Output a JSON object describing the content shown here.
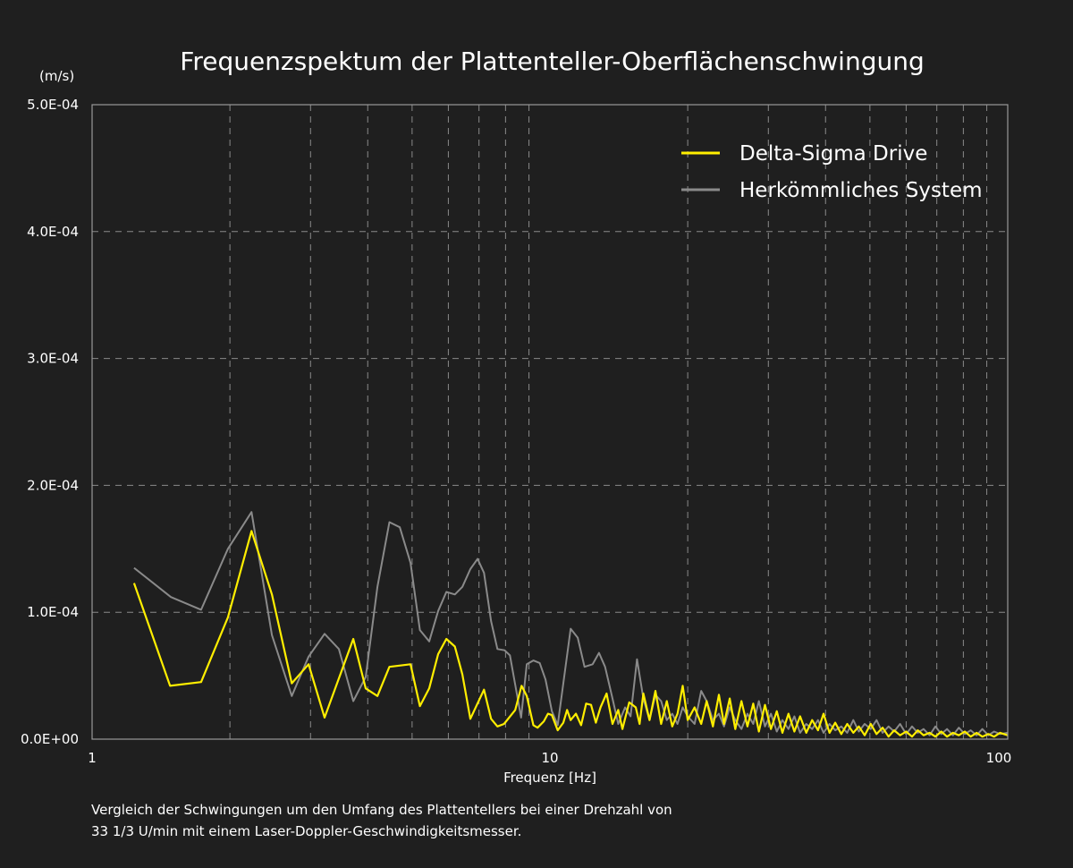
{
  "chart_data": {
    "type": "line",
    "title": "Frequenzspektum der Plattenteller-Oberflächenschwingung",
    "ylabel": "(m/s)",
    "xlabel": "Frequenz [Hz]",
    "xscale": "log",
    "xlim": [
      1,
      100
    ],
    "ylim": [
      0,
      0.0005
    ],
    "xticks": [
      1,
      10,
      100
    ],
    "xtick_labels": [
      "1",
      "10",
      "100"
    ],
    "yticks": [
      0,
      0.0001,
      0.0002,
      0.0003,
      0.0004,
      0.0005
    ],
    "ytick_labels": [
      "0.0E+00",
      "1.0E-04",
      "2.0E-04",
      "3.0E-04",
      "4.0E-04",
      "5.0E-04"
    ],
    "grid": true,
    "legend_position": "top-right",
    "series": [
      {
        "name": "Delta-Sigma Drive",
        "color": "#ffee00",
        "points": [
          [
            1.235,
            0.000123
          ],
          [
            1.48,
            4.2e-05
          ],
          [
            1.73,
            4.5e-05
          ],
          [
            1.98,
            9.6e-05
          ],
          [
            2.23,
            0.000164
          ],
          [
            2.47,
            0.000114
          ],
          [
            2.73,
            4.4e-05
          ],
          [
            2.97,
            5.9e-05
          ],
          [
            3.22,
            1.7e-05
          ],
          [
            3.72,
            7.9e-05
          ],
          [
            3.96,
            4e-05
          ],
          [
            4.2,
            3.4e-05
          ],
          [
            4.46,
            5.7e-05
          ],
          [
            4.96,
            5.9e-05
          ],
          [
            5.2,
            2.6e-05
          ],
          [
            5.45,
            4e-05
          ],
          [
            5.7,
            6.7e-05
          ],
          [
            5.94,
            7.9e-05
          ],
          [
            6.2,
            7.3e-05
          ],
          [
            6.44,
            5.1e-05
          ],
          [
            6.7,
            1.6e-05
          ],
          [
            7.18,
            3.9e-05
          ],
          [
            7.44,
            1.6e-05
          ],
          [
            7.68,
            1e-05
          ],
          [
            7.94,
            1.2e-05
          ],
          [
            8.4,
            2.3e-05
          ],
          [
            8.67,
            4.2e-05
          ],
          [
            8.9,
            3.4e-05
          ],
          [
            9.2,
            1.1e-05
          ],
          [
            9.4,
            9e-06
          ],
          [
            9.7,
            1.4e-05
          ],
          [
            9.9,
            2e-05
          ],
          [
            10.1,
            1.9e-05
          ],
          [
            10.4,
            7e-06
          ],
          [
            10.7,
            1.3e-05
          ],
          [
            10.9,
            2.3e-05
          ],
          [
            11.1,
            1.5e-05
          ],
          [
            11.4,
            2e-05
          ],
          [
            11.7,
            1.1e-05
          ],
          [
            12.0,
            2.8e-05
          ],
          [
            12.3,
            2.7e-05
          ],
          [
            12.6,
            1.3e-05
          ],
          [
            12.9,
            2.5e-05
          ],
          [
            13.3,
            3.6e-05
          ],
          [
            13.7,
            1.2e-05
          ],
          [
            14.1,
            2.3e-05
          ],
          [
            14.4,
            8e-06
          ],
          [
            14.9,
            2.9e-05
          ],
          [
            15.4,
            2.5e-05
          ],
          [
            15.7,
            1.2e-05
          ],
          [
            16,
            3.6e-05
          ],
          [
            16.5,
            1.5e-05
          ],
          [
            17,
            3.8e-05
          ],
          [
            17.5,
            1.2e-05
          ],
          [
            18,
            3e-05
          ],
          [
            18.5,
            1e-05
          ],
          [
            19,
            2e-05
          ],
          [
            19.5,
            4.2e-05
          ],
          [
            20,
            1.5e-05
          ],
          [
            20.7,
            2.5e-05
          ],
          [
            21.4,
            1.2e-05
          ],
          [
            22,
            3e-05
          ],
          [
            22.7,
            1e-05
          ],
          [
            23.4,
            3.5e-05
          ],
          [
            24,
            1.2e-05
          ],
          [
            24.7,
            3.2e-05
          ],
          [
            25.4,
            8e-06
          ],
          [
            26.2,
            3e-05
          ],
          [
            27,
            1e-05
          ],
          [
            27.8,
            2.8e-05
          ],
          [
            28.6,
            6e-06
          ],
          [
            29.5,
            2.7e-05
          ],
          [
            30.4,
            8e-06
          ],
          [
            31.3,
            2.2e-05
          ],
          [
            32.2,
            5e-06
          ],
          [
            33.2,
            2e-05
          ],
          [
            34.2,
            6e-06
          ],
          [
            35.2,
            1.8e-05
          ],
          [
            36.3,
            5e-06
          ],
          [
            37.4,
            1.5e-05
          ],
          [
            38.5,
            7e-06
          ],
          [
            39.6,
            2e-05
          ],
          [
            40.8,
            5e-06
          ],
          [
            42,
            1.3e-05
          ],
          [
            43.3,
            4e-06
          ],
          [
            44.6,
            1.2e-05
          ],
          [
            46,
            5e-06
          ],
          [
            47.3,
            1e-05
          ],
          [
            48.7,
            3e-06
          ],
          [
            50.2,
            1.2e-05
          ],
          [
            51.7,
            4e-06
          ],
          [
            53.3,
            9e-06
          ],
          [
            54.9,
            2e-06
          ],
          [
            56.5,
            7e-06
          ],
          [
            58.2,
            3e-06
          ],
          [
            60,
            6e-06
          ],
          [
            61.8,
            2e-06
          ],
          [
            63.6,
            7e-06
          ],
          [
            65.5,
            3e-06
          ],
          [
            67.5,
            5e-06
          ],
          [
            69.5,
            2e-06
          ],
          [
            71.6,
            6e-06
          ],
          [
            73.7,
            2e-06
          ],
          [
            75.9,
            5e-06
          ],
          [
            78.2,
            3e-06
          ],
          [
            80.6,
            6e-06
          ],
          [
            83,
            2e-06
          ],
          [
            85.5,
            5e-06
          ],
          [
            88,
            2e-06
          ],
          [
            90.7,
            4e-06
          ],
          [
            93.4,
            2e-06
          ],
          [
            96.2,
            5e-06
          ],
          [
            100,
            3e-06
          ]
        ]
      },
      {
        "name": "Herkömmliches System",
        "color": "#8a8a8a",
        "points": [
          [
            1.235,
            0.000135
          ],
          [
            1.486,
            0.000112
          ],
          [
            1.73,
            0.000102
          ],
          [
            1.98,
            0.00015
          ],
          [
            2.23,
            0.000179
          ],
          [
            2.47,
            8.2e-05
          ],
          [
            2.73,
            3.4e-05
          ],
          [
            2.97,
            6.5e-05
          ],
          [
            3.22,
            8.3e-05
          ],
          [
            3.46,
            7.1e-05
          ],
          [
            3.72,
            3e-05
          ],
          [
            3.96,
            4.9e-05
          ],
          [
            4.2,
            0.00012
          ],
          [
            4.46,
            0.000171
          ],
          [
            4.7,
            0.000167
          ],
          [
            4.96,
            0.000139
          ],
          [
            5.2,
            8.6e-05
          ],
          [
            5.45,
            7.7e-05
          ],
          [
            5.7,
            0.000101
          ],
          [
            5.94,
            0.000116
          ],
          [
            6.2,
            0.000114
          ],
          [
            6.44,
            0.00012
          ],
          [
            6.7,
            0.000134
          ],
          [
            6.95,
            0.000142
          ],
          [
            7.18,
            0.000131
          ],
          [
            7.44,
            9.3e-05
          ],
          [
            7.68,
            7.1e-05
          ],
          [
            7.96,
            7e-05
          ],
          [
            8.18,
            6.6e-05
          ],
          [
            8.65,
            1.7e-05
          ],
          [
            8.9,
            5.9e-05
          ],
          [
            9.2,
            6.2e-05
          ],
          [
            9.5,
            6e-05
          ],
          [
            9.78,
            4.7e-05
          ],
          [
            10.1,
            2.2e-05
          ],
          [
            10.4,
            1.1e-05
          ],
          [
            11.1,
            8.7e-05
          ],
          [
            11.5,
            8e-05
          ],
          [
            11.9,
            5.7e-05
          ],
          [
            12.4,
            5.9e-05
          ],
          [
            12.8,
            6.8e-05
          ],
          [
            13.2,
            5.7e-05
          ],
          [
            13.7,
            3.2e-05
          ],
          [
            14.1,
            1.2e-05
          ],
          [
            14.6,
            2.5e-05
          ],
          [
            15.0,
            1.8e-05
          ],
          [
            15.5,
            6.3e-05
          ],
          [
            16,
            3.2e-05
          ],
          [
            16.5,
            1.5e-05
          ],
          [
            17,
            3.5e-05
          ],
          [
            17.5,
            3e-05
          ],
          [
            18,
            1.5e-05
          ],
          [
            18.5,
            2e-05
          ],
          [
            19,
            1.2e-05
          ],
          [
            19.5,
            2.5e-05
          ],
          [
            20,
            1.8e-05
          ],
          [
            20.7,
            1.2e-05
          ],
          [
            21.4,
            3.8e-05
          ],
          [
            22,
            3e-05
          ],
          [
            22.7,
            1.5e-05
          ],
          [
            23.4,
            2e-05
          ],
          [
            24,
            1e-05
          ],
          [
            24.7,
            2.5e-05
          ],
          [
            25.4,
            1.5e-05
          ],
          [
            26.2,
            8e-06
          ],
          [
            27,
            2e-05
          ],
          [
            27.8,
            1.2e-05
          ],
          [
            28.6,
            3e-05
          ],
          [
            29.5,
            1e-05
          ],
          [
            30.4,
            2e-05
          ],
          [
            31.3,
            6e-06
          ],
          [
            32.2,
            1.5e-05
          ],
          [
            33.2,
            8e-06
          ],
          [
            34.2,
            1.8e-05
          ],
          [
            35.2,
            5e-06
          ],
          [
            36.3,
            1.2e-05
          ],
          [
            37.4,
            8e-06
          ],
          [
            38.5,
            1.5e-05
          ],
          [
            39.6,
            5e-06
          ],
          [
            40.8,
            1.2e-05
          ],
          [
            42,
            7e-06
          ],
          [
            43.3,
            1e-05
          ],
          [
            44.6,
            5e-06
          ],
          [
            46,
            1.5e-05
          ],
          [
            47.3,
            6e-06
          ],
          [
            48.7,
            1.2e-05
          ],
          [
            50.2,
            8e-06
          ],
          [
            51.7,
            1.5e-05
          ],
          [
            53.3,
            5e-06
          ],
          [
            54.9,
            1e-05
          ],
          [
            56.5,
            6e-06
          ],
          [
            58.2,
            1.2e-05
          ],
          [
            60,
            4e-06
          ],
          [
            61.8,
            1e-05
          ],
          [
            63.6,
            5e-06
          ],
          [
            65.5,
            8e-06
          ],
          [
            67.5,
            3e-06
          ],
          [
            69.5,
            1e-05
          ],
          [
            71.6,
            4e-06
          ],
          [
            73.7,
            8e-06
          ],
          [
            75.9,
            3e-06
          ],
          [
            78.2,
            9e-06
          ],
          [
            80.6,
            4e-06
          ],
          [
            83,
            7e-06
          ],
          [
            85.5,
            3e-06
          ],
          [
            88,
            8e-06
          ],
          [
            90.7,
            3e-06
          ],
          [
            93.4,
            6e-06
          ],
          [
            96.2,
            4e-06
          ],
          [
            100,
            5e-06
          ]
        ]
      }
    ],
    "caption": [
      "Vergleich der Schwingungen um den Umfang des Plattentellers bei einer Drehzahl von",
      "33 1/3 U/min mit einem Laser-Doppler-Geschwindigkeitsmesser."
    ]
  }
}
